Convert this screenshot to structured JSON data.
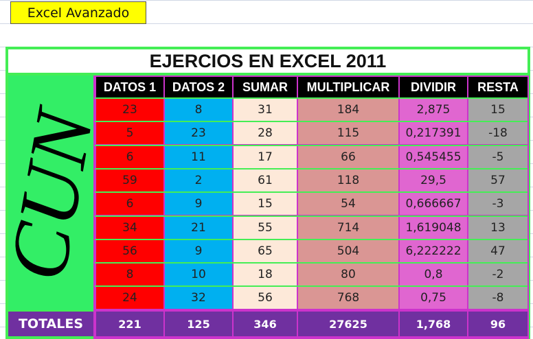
{
  "header": {
    "label": "Excel Avanzado"
  },
  "table": {
    "title": "EJERCIOS EN EXCEL 2011",
    "side_label": "CUN",
    "columns": [
      "DATOS 1",
      "DATOS 2",
      "SUMAR",
      "MULTIPLICAR",
      "DIVIDIR",
      "RESTA"
    ],
    "rows": [
      [
        23,
        8,
        31,
        184,
        "2,875",
        15
      ],
      [
        5,
        23,
        28,
        115,
        "0,217391",
        -18
      ],
      [
        6,
        11,
        17,
        66,
        "0,545455",
        -5
      ],
      [
        59,
        2,
        61,
        118,
        "29,5",
        57
      ],
      [
        6,
        9,
        15,
        54,
        "0,666667",
        -3
      ],
      [
        34,
        21,
        55,
        714,
        "1,619048",
        13
      ],
      [
        56,
        9,
        65,
        504,
        "6,222222",
        47
      ],
      [
        8,
        10,
        18,
        80,
        "0,8",
        -2
      ],
      [
        24,
        32,
        56,
        768,
        "0,75",
        -8
      ]
    ],
    "totals_label": "TOTALES",
    "totals": [
      221,
      125,
      346,
      27625,
      "1,768",
      96
    ]
  }
}
